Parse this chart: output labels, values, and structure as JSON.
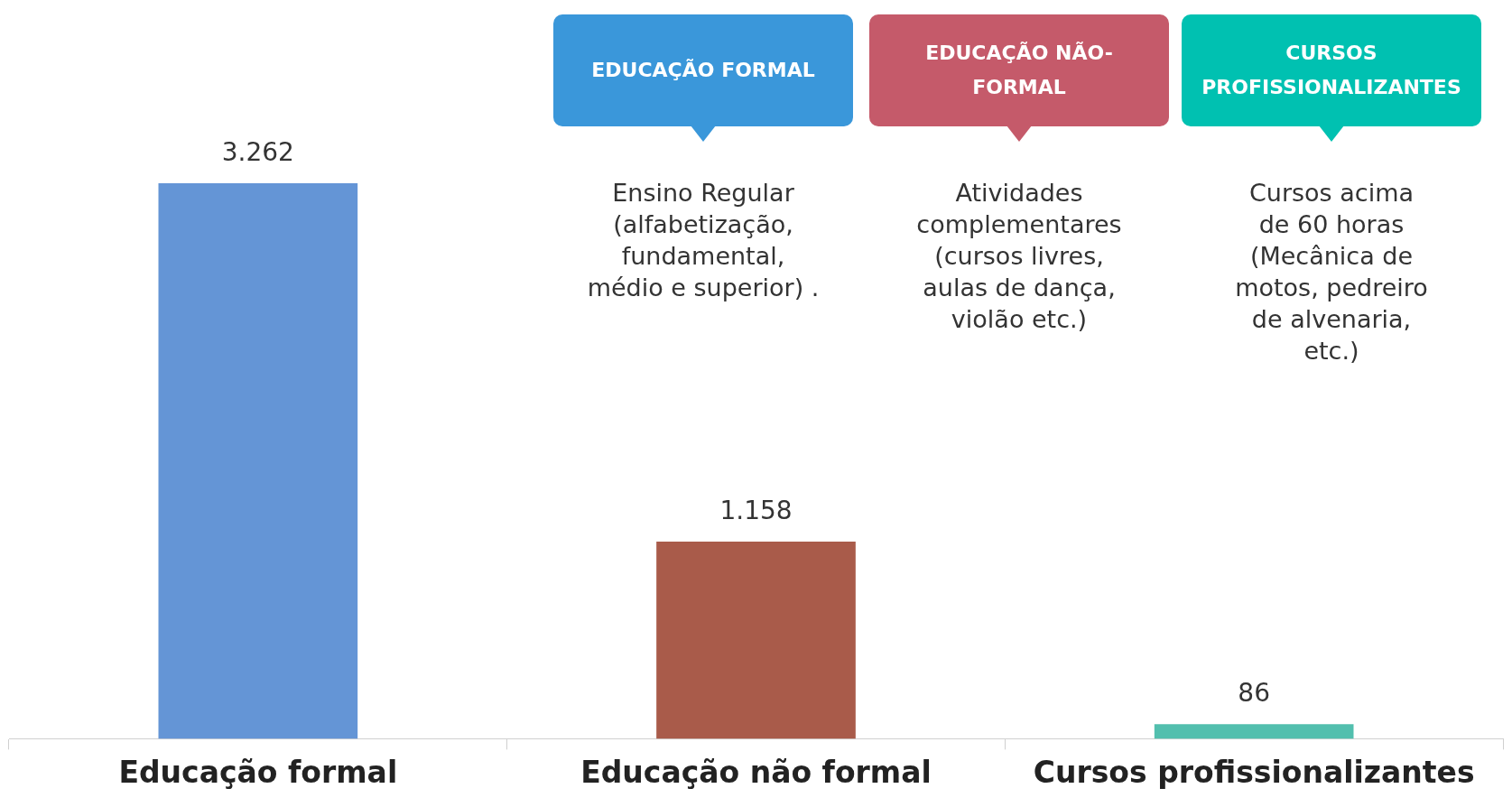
{
  "chart_data": {
    "type": "bar",
    "categories": [
      "Educação formal",
      "Educação não formal",
      "Cursos profissionalizantes"
    ],
    "values": [
      3262,
      1158,
      86
    ],
    "colors": [
      "#6495d6",
      "#a95b4a",
      "#52bfae"
    ],
    "value_labels": [
      "3.262",
      "1.158",
      "86"
    ],
    "annotations": [
      "EDUCAÇÃO FORMAL",
      "EDUCAÇÃO NÃO-FORMAL",
      "CURSOS PROFISSIONALIZANTES",
      "Ensino Regular\n(alfabetização,\nfundamental,\nmédio e superior) .",
      "Atividades\ncomplementares\n(cursos livres,\naulas de dança,\nviolão etc.)",
      "Cursos acima\nde 60 horas\n(Mecânica de\nmotos, pedreiro\nde alvenaria,\netc.)"
    ],
    "grid": false,
    "legend": false
  }
}
